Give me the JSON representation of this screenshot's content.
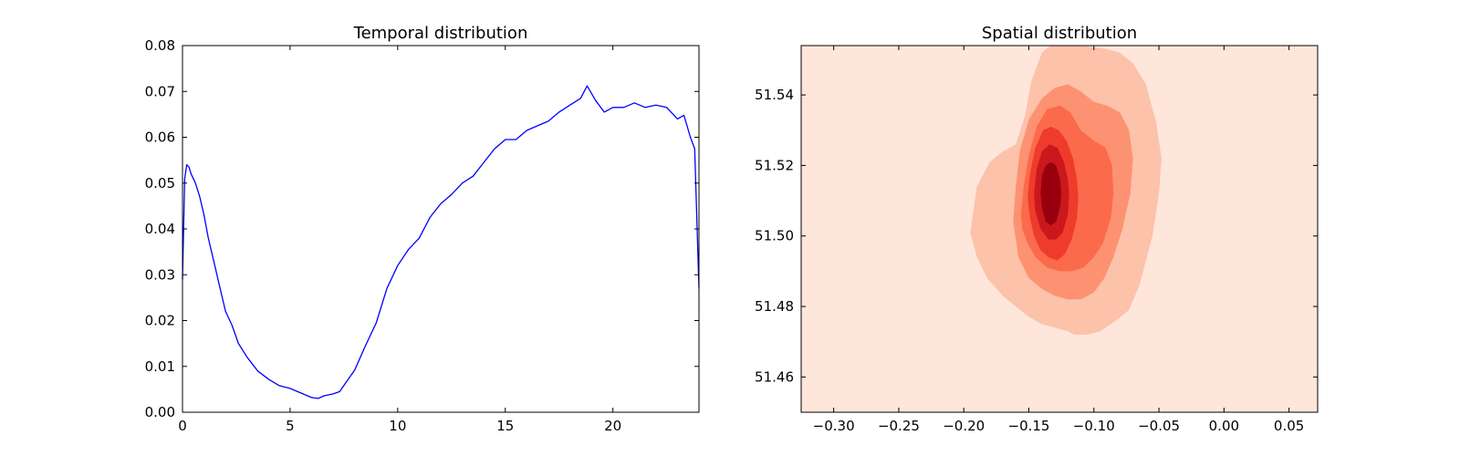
{
  "chart_data": [
    {
      "type": "line",
      "title": "Temporal distribution",
      "xlabel": "",
      "ylabel": "",
      "xlim": [
        0,
        24
      ],
      "ylim": [
        0,
        0.08
      ],
      "grid": false,
      "xticks": [
        0,
        5,
        10,
        15,
        20
      ],
      "xtick_labels": [
        "0",
        "5",
        "10",
        "15",
        "20"
      ],
      "yticks": [
        0,
        0.01,
        0.02,
        0.03,
        0.04,
        0.05,
        0.06,
        0.07,
        0.08
      ],
      "ytick_labels": [
        "0.00",
        "0.01",
        "0.02",
        "0.03",
        "0.04",
        "0.05",
        "0.06",
        "0.07",
        "0.08"
      ],
      "line_color": "#0000ff",
      "x": [
        0.0,
        0.1,
        0.2,
        0.3,
        0.4,
        0.5,
        0.6,
        0.8,
        1.0,
        1.2,
        1.5,
        1.8,
        2.0,
        2.3,
        2.6,
        3.0,
        3.5,
        4.0,
        4.5,
        5.0,
        5.5,
        6.0,
        6.3,
        6.6,
        7.0,
        7.3,
        7.6,
        8.0,
        8.5,
        9.0,
        9.5,
        10.0,
        10.5,
        11.0,
        11.5,
        12.0,
        12.5,
        13.0,
        13.5,
        14.0,
        14.5,
        15.0,
        15.5,
        16.0,
        16.5,
        17.0,
        17.5,
        18.0,
        18.5,
        18.8,
        19.2,
        19.6,
        20.0,
        20.5,
        21.0,
        21.5,
        22.0,
        22.5,
        23.0,
        23.3,
        23.6,
        23.8,
        24.0
      ],
      "y": [
        0.029,
        0.051,
        0.054,
        0.0535,
        0.052,
        0.051,
        0.05,
        0.047,
        0.043,
        0.038,
        0.032,
        0.026,
        0.022,
        0.019,
        0.015,
        0.012,
        0.009,
        0.0072,
        0.0058,
        0.0052,
        0.0042,
        0.0032,
        0.003,
        0.0036,
        0.004,
        0.0045,
        0.0065,
        0.0092,
        0.0145,
        0.0195,
        0.027,
        0.032,
        0.0355,
        0.038,
        0.0425,
        0.0455,
        0.0475,
        0.05,
        0.0515,
        0.0545,
        0.0575,
        0.0595,
        0.0595,
        0.0615,
        0.0625,
        0.0635,
        0.0655,
        0.067,
        0.0685,
        0.0712,
        0.068,
        0.0655,
        0.0665,
        0.0665,
        0.0675,
        0.0665,
        0.067,
        0.0665,
        0.064,
        0.0648,
        0.06,
        0.0575,
        0.027
      ]
    },
    {
      "type": "contour",
      "title": "Spatial distribution",
      "xlabel": "",
      "ylabel": "",
      "xlim": [
        -0.325,
        0.072
      ],
      "ylim": [
        51.45,
        51.554
      ],
      "grid": false,
      "xticks": [
        -0.3,
        -0.25,
        -0.2,
        -0.15,
        -0.1,
        -0.05,
        0.0,
        0.05
      ],
      "xtick_labels": [
        "−0.30",
        "−0.25",
        "−0.20",
        "−0.15",
        "−0.10",
        "−0.05",
        "0.00",
        "0.05"
      ],
      "yticks": [
        51.46,
        51.48,
        51.5,
        51.52,
        51.54
      ],
      "ytick_labels": [
        "51.46",
        "51.48",
        "51.50",
        "51.52",
        "51.54"
      ],
      "colormap": "Reds",
      "background_color": "#fee6db",
      "levels": [
        {
          "color": "#fcc2aa",
          "x": [
            -0.195,
            -0.19,
            -0.18,
            -0.17,
            -0.16,
            -0.153,
            -0.148,
            -0.14,
            -0.13,
            -0.12,
            -0.11,
            -0.09,
            -0.08,
            -0.07,
            -0.06,
            -0.052,
            -0.048,
            -0.05,
            -0.055,
            -0.06,
            -0.065,
            -0.073,
            -0.083,
            -0.095,
            -0.105,
            -0.115,
            -0.12,
            -0.13,
            -0.14,
            -0.15,
            -0.16,
            -0.17,
            -0.182,
            -0.19,
            -0.195
          ],
          "y": [
            51.501,
            51.514,
            51.521,
            51.524,
            51.526,
            51.534,
            51.544,
            51.552,
            51.555,
            51.555,
            51.554,
            51.553,
            51.552,
            51.549,
            51.543,
            51.532,
            51.522,
            51.512,
            51.5,
            51.493,
            51.486,
            51.479,
            51.476,
            51.473,
            51.472,
            51.472,
            51.473,
            51.474,
            51.475,
            51.477,
            51.48,
            51.483,
            51.488,
            51.494,
            51.501
          ]
        },
        {
          "color": "#fc9272",
          "x": [
            -0.162,
            -0.16,
            -0.157,
            -0.15,
            -0.14,
            -0.13,
            -0.12,
            -0.11,
            -0.1,
            -0.09,
            -0.08,
            -0.073,
            -0.07,
            -0.072,
            -0.078,
            -0.085,
            -0.092,
            -0.1,
            -0.11,
            -0.12,
            -0.13,
            -0.14,
            -0.15,
            -0.158,
            -0.162
          ],
          "y": [
            51.504,
            51.514,
            51.524,
            51.533,
            51.539,
            51.542,
            51.543,
            51.541,
            51.538,
            51.537,
            51.535,
            51.53,
            51.522,
            51.512,
            51.502,
            51.494,
            51.488,
            51.484,
            51.482,
            51.482,
            51.483,
            51.485,
            51.488,
            51.494,
            51.504
          ]
        },
        {
          "color": "#fb6a4a",
          "x": [
            -0.156,
            -0.154,
            -0.15,
            -0.144,
            -0.136,
            -0.126,
            -0.118,
            -0.11,
            -0.1,
            -0.091,
            -0.086,
            -0.085,
            -0.087,
            -0.093,
            -0.1,
            -0.108,
            -0.117,
            -0.126,
            -0.136,
            -0.145,
            -0.151,
            -0.155,
            -0.156
          ],
          "y": [
            51.506,
            51.514,
            51.523,
            51.531,
            51.536,
            51.537,
            51.535,
            51.53,
            51.527,
            51.525,
            51.52,
            51.512,
            51.505,
            51.498,
            51.494,
            51.491,
            51.49,
            51.49,
            51.491,
            51.494,
            51.498,
            51.502,
            51.506
          ]
        },
        {
          "color": "#ef3b2c",
          "x": [
            -0.151,
            -0.149,
            -0.145,
            -0.139,
            -0.133,
            -0.127,
            -0.121,
            -0.116,
            -0.113,
            -0.112,
            -0.113,
            -0.117,
            -0.122,
            -0.128,
            -0.135,
            -0.141,
            -0.146,
            -0.149,
            -0.151
          ],
          "y": [
            51.511,
            51.518,
            51.525,
            51.53,
            51.531,
            51.53,
            51.527,
            51.522,
            51.516,
            51.511,
            51.505,
            51.499,
            51.495,
            51.493,
            51.494,
            51.496,
            51.5,
            51.505,
            51.511
          ]
        },
        {
          "color": "#cb181d",
          "x": [
            -0.146,
            -0.144,
            -0.14,
            -0.134,
            -0.128,
            -0.123,
            -0.12,
            -0.119,
            -0.12,
            -0.124,
            -0.129,
            -0.135,
            -0.141,
            -0.145,
            -0.146
          ],
          "y": [
            51.512,
            51.519,
            51.524,
            51.526,
            51.525,
            51.521,
            51.516,
            51.512,
            51.506,
            51.501,
            51.499,
            51.499,
            51.502,
            51.507,
            51.512
          ]
        },
        {
          "color": "#99000d",
          "x": [
            -0.141,
            -0.14,
            -0.137,
            -0.133,
            -0.129,
            -0.126,
            -0.125,
            -0.126,
            -0.129,
            -0.133,
            -0.137,
            -0.14,
            -0.141
          ],
          "y": [
            51.512,
            51.517,
            51.52,
            51.521,
            51.52,
            51.516,
            51.512,
            51.508,
            51.504,
            51.503,
            51.504,
            51.508,
            51.512
          ]
        }
      ]
    }
  ]
}
